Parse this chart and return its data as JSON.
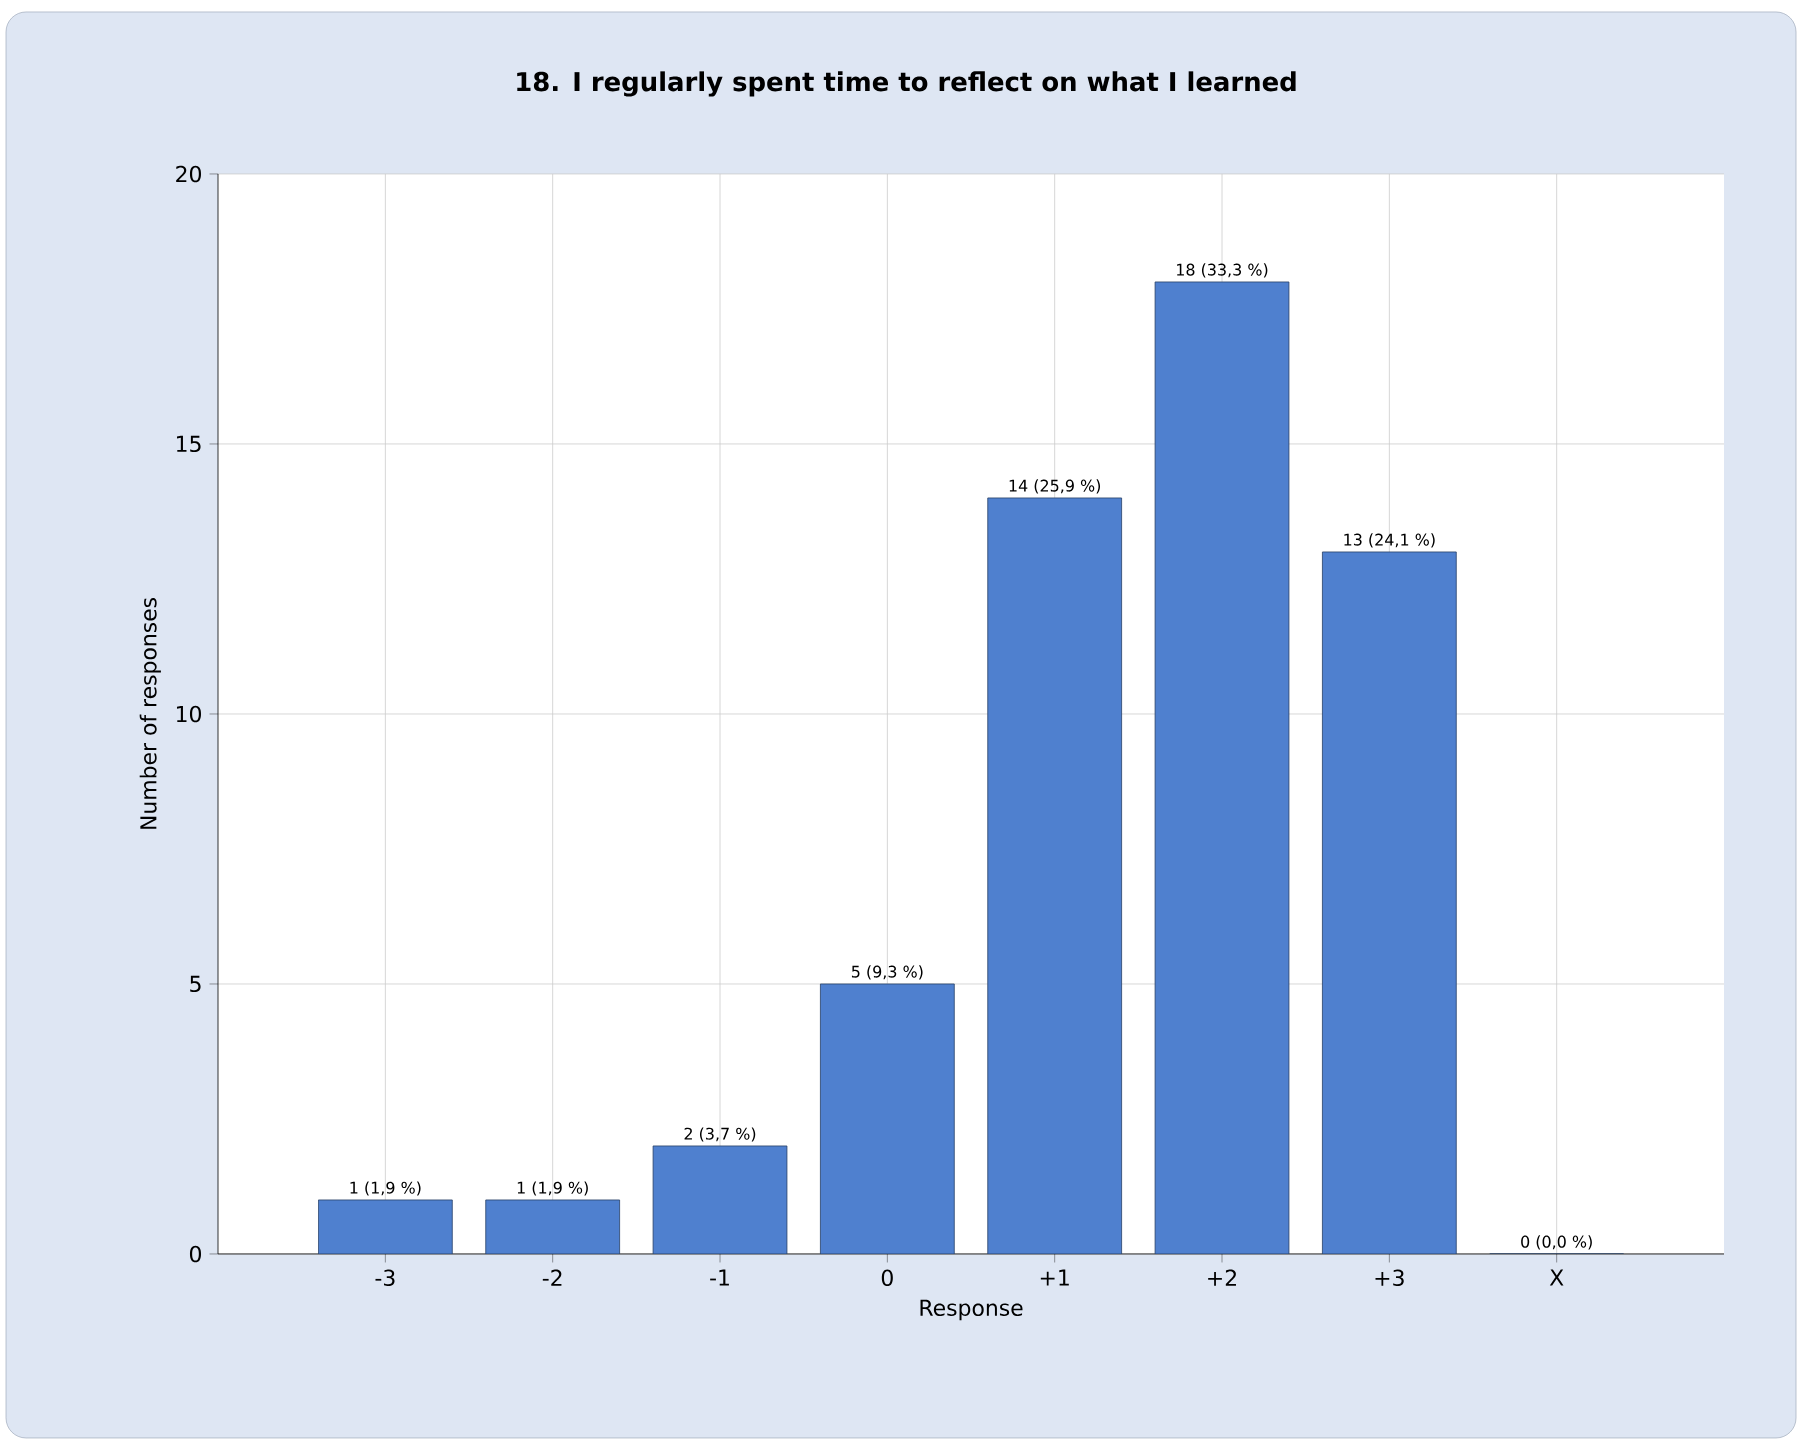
{
  "chart_data": {
    "type": "bar",
    "title": "18. I regularly spent time to reflect on what I learned",
    "xlabel": "Response",
    "ylabel": "Number of responses",
    "categories": [
      "-3",
      "-2",
      "-1",
      "0",
      "+1",
      "+2",
      "+3",
      "X"
    ],
    "values": [
      1,
      1,
      2,
      5,
      14,
      18,
      13,
      0
    ],
    "value_labels": [
      "1 (1,9 %)",
      "1 (1,9 %)",
      "2 (3,7 %)",
      "5 (9,3 %)",
      "14 (25,9 %)",
      "18 (33,3 %)",
      "13 (24,1 %)",
      "0 (0,0 %)"
    ],
    "color": "#4f80cf",
    "ylim": [
      0,
      20
    ],
    "yticks": [
      0,
      5,
      10,
      15,
      20
    ],
    "grid": true
  }
}
